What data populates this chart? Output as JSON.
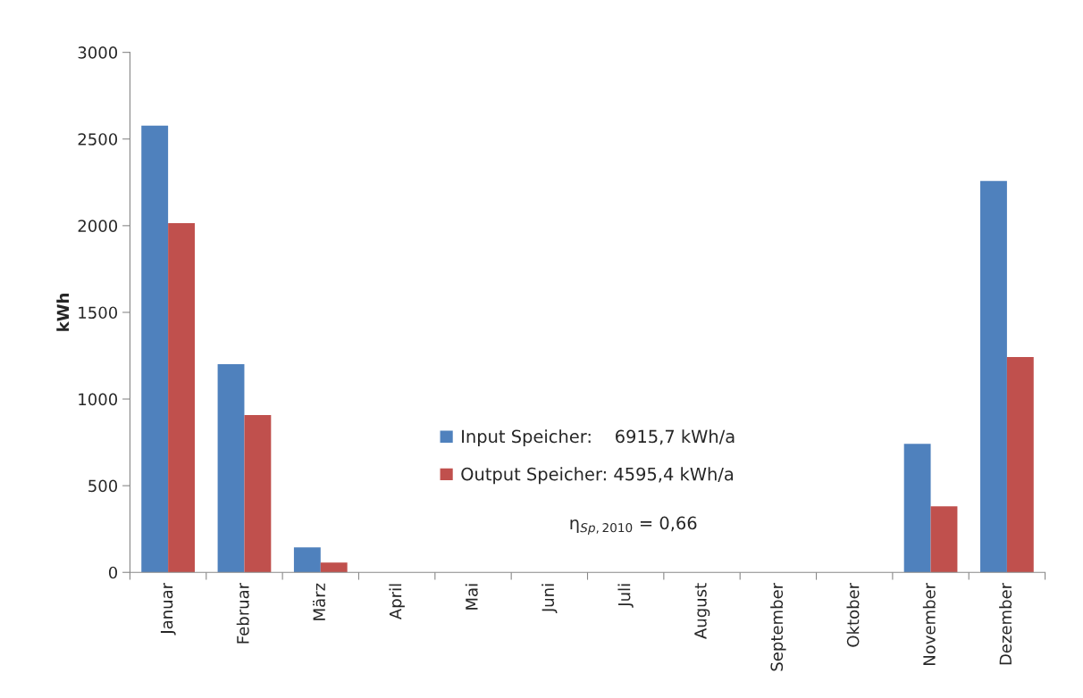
{
  "chart_data": {
    "type": "bar",
    "ylabel": "kWh",
    "categories": [
      "Januar",
      "Februar",
      "März",
      "April",
      "Mai",
      "Juni",
      "Juli",
      "August",
      "September",
      "Oktober",
      "November",
      "Dezember"
    ],
    "series": [
      {
        "name": "Input Speicher:    6915,7 kWh/a",
        "color": "#4f81bd",
        "values": [
          2577,
          1201,
          144,
          0,
          0,
          0,
          0,
          0,
          0,
          0,
          742,
          2258
        ]
      },
      {
        "name": "Output Speicher: 4595,4 kWh/a",
        "color": "#c0504d",
        "values": [
          2015,
          907,
          57,
          0,
          0,
          0,
          0,
          0,
          0,
          0,
          381,
          1242
        ]
      }
    ],
    "ylim": [
      0,
      3000
    ],
    "yticks": [
      0,
      500,
      1000,
      1500,
      2000,
      2500,
      3000
    ],
    "grid": false,
    "legend": "bottom",
    "annotations": [
      "η$_{Sp,2010}$ = 0,66"
    ]
  }
}
